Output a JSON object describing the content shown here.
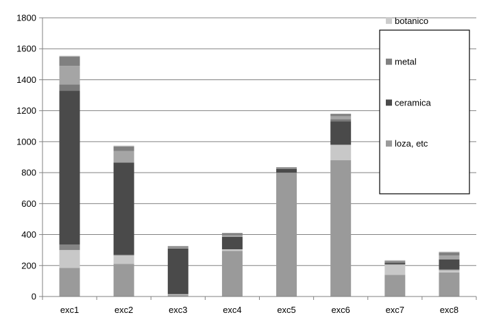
{
  "chart_data": {
    "type": "bar",
    "stacked": true,
    "title": "",
    "xlabel": "",
    "ylabel": "",
    "ylim": [
      0,
      1800
    ],
    "yticks": [
      0,
      200,
      400,
      600,
      800,
      1000,
      1200,
      1400,
      1600,
      1800
    ],
    "grid": true,
    "legend_position": "right",
    "categories": [
      "exc1",
      "exc2",
      "exc3",
      "exc4",
      "exc5",
      "exc6",
      "exc7",
      "exc8"
    ],
    "series": [
      {
        "name": "loza, etc",
        "color": "#9a9a9a",
        "values": [
          185,
          210,
          10,
          295,
          800,
          880,
          140,
          155
        ]
      },
      {
        "name": "",
        "color": "#c8c8c8",
        "values": [
          115,
          55,
          5,
          10,
          0,
          100,
          65,
          15
        ]
      },
      {
        "name": "",
        "color": "#858585",
        "values": [
          35,
          5,
          0,
          0,
          0,
          0,
          5,
          5
        ]
      },
      {
        "name": "ceramica",
        "color": "#4a4a4a",
        "values": [
          995,
          595,
          295,
          80,
          25,
          150,
          10,
          65
        ]
      },
      {
        "name": "",
        "color": "#7a7a7a",
        "values": [
          40,
          0,
          0,
          0,
          0,
          15,
          0,
          0
        ]
      },
      {
        "name": "",
        "color": "#a5a5a5",
        "values": [
          120,
          75,
          5,
          10,
          5,
          20,
          5,
          25
        ]
      },
      {
        "name": "metal",
        "color": "#808080",
        "values": [
          60,
          30,
          10,
          15,
          5,
          15,
          5,
          20
        ]
      },
      {
        "name": "botanico",
        "color": "#cccccc",
        "values": [
          5,
          5,
          0,
          0,
          0,
          0,
          5,
          5
        ]
      }
    ],
    "legend": [
      {
        "label": "botanico",
        "color": "#cccccc"
      },
      {
        "label": "metal",
        "color": "#808080"
      },
      {
        "label": "ceramica",
        "color": "#4a4a4a"
      },
      {
        "label": "loza, etc",
        "color": "#9a9a9a"
      }
    ]
  }
}
